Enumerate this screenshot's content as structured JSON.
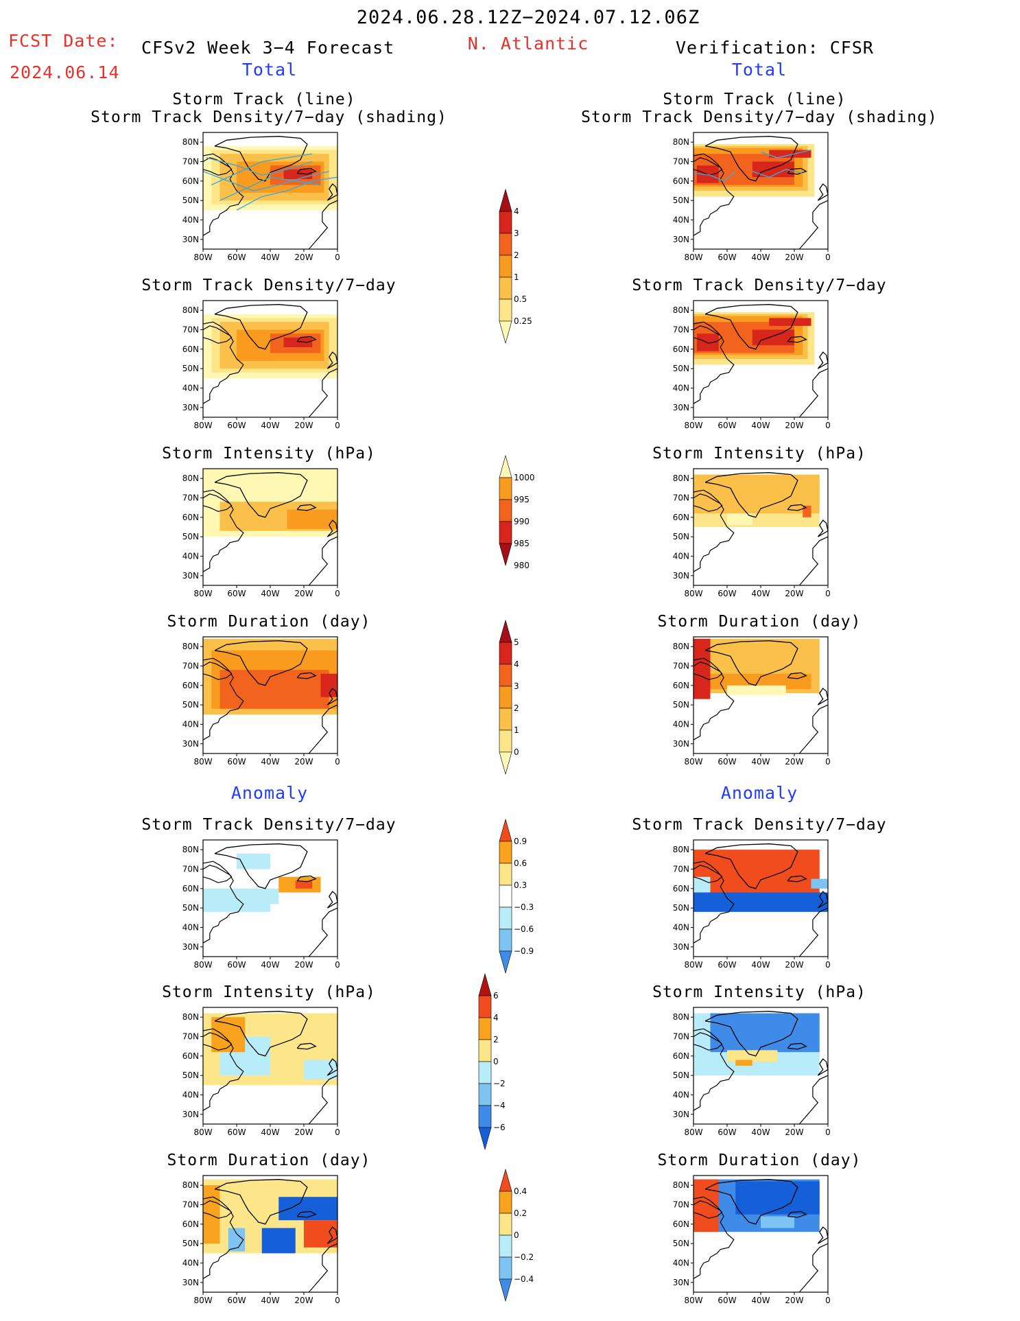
{
  "header": {
    "period": "2024.06.28.12Z−2024.07.12.06Z",
    "fcst_label": "FCST Date:",
    "fcst_date": "2024.06.14",
    "model": "CFSv2 Week 3−4 Forecast",
    "region": "N. Atlantic",
    "verification": "Verification: CFSR"
  },
  "sections": {
    "total_left": "Total",
    "total_right": "Total",
    "anomaly_left": "Anomaly",
    "anomaly_right": "Anomaly"
  },
  "titles": {
    "track_line": "Storm Track (line)",
    "track_shading": "Storm Track Density/7−day (shading)",
    "density": "Storm Track Density/7−day",
    "intensity": "Storm Intensity (hPa)",
    "duration": "Storm Duration (day)"
  },
  "axes": {
    "lat_ticks": [
      "80N",
      "70N",
      "60N",
      "50N",
      "40N",
      "30N"
    ],
    "lon_ticks": [
      "80W",
      "60W",
      "40W",
      "20W",
      "0"
    ]
  },
  "colorbars": {
    "density": [
      "4",
      "3",
      "2",
      "1",
      "0.5",
      "0.25"
    ],
    "intensity": [
      "1000",
      "995",
      "990",
      "985",
      "980"
    ],
    "duration": [
      "5",
      "4",
      "3",
      "2",
      "1",
      "0"
    ],
    "density_anom": [
      "0.9",
      "0.6",
      "0.3",
      "−0.3",
      "−0.6",
      "−0.9"
    ],
    "intensity_anom": [
      "6",
      "4",
      "2",
      "0",
      "−2",
      "−4",
      "−6"
    ],
    "duration_anom": [
      "0.4",
      "0.2",
      "0",
      "−0.2",
      "−0.4"
    ]
  },
  "colors": {
    "ramp_warm": [
      "#fff8b4",
      "#fde68a",
      "#fbc04a",
      "#f89b1e",
      "#f2641e",
      "#d7261c",
      "#a50f15"
    ],
    "ramp_anom_pos": [
      "#fde68a",
      "#f8a21e",
      "#f04c1e",
      "#b3140f"
    ],
    "ramp_anom_neg": [
      "#b8ecf8",
      "#7dc4f2",
      "#3f8be8",
      "#1560d8"
    ],
    "track_line": "#3fa8d8",
    "title_red": "#e8302a",
    "title_blue": "#1f3cff"
  }
}
